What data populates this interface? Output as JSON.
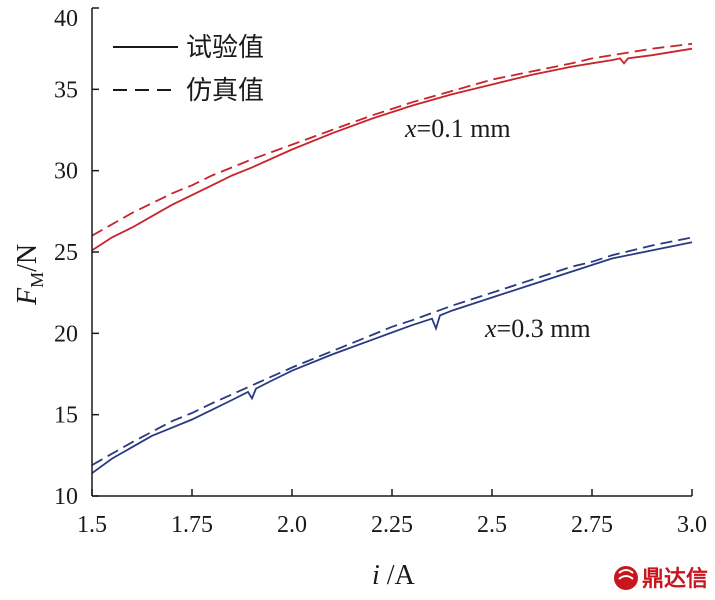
{
  "chart_data": {
    "type": "line",
    "xlabel": {
      "var": "i",
      "unit": " /A"
    },
    "ylabel": {
      "var": "F",
      "sub": "M",
      "unit": "/N"
    },
    "xlim": [
      1.5,
      3.0
    ],
    "ylim": [
      10,
      40
    ],
    "xticks": [
      "1.5",
      "1.75",
      "2.0",
      "2.25",
      "2.5",
      "2.75",
      "3.0"
    ],
    "yticks": [
      "10",
      "15",
      "20",
      "25",
      "30",
      "35",
      "40"
    ],
    "grid": false,
    "legend": {
      "position": "top-left",
      "entries": [
        {
          "label": "试验值",
          "style": "solid"
        },
        {
          "label": "仿真值",
          "style": "dashed"
        }
      ]
    },
    "annotations": [
      {
        "var": "x",
        "text": "=0.1 mm",
        "x": 2.28,
        "y": 33.4
      },
      {
        "var": "x",
        "text": "=0.3 mm",
        "x": 2.47,
        "y": 19.8
      }
    ],
    "series": [
      {
        "group": "0.1",
        "style": "solid",
        "color": "#c8242b",
        "x": [
          1.5,
          1.55,
          1.6,
          1.65,
          1.7,
          1.75,
          1.8,
          1.85,
          1.9,
          2.0,
          2.1,
          2.2,
          2.25,
          2.3,
          2.4,
          2.5,
          2.6,
          2.7,
          2.75,
          2.8,
          2.82,
          2.83,
          2.84,
          2.9,
          3.0
        ],
        "y": [
          25.1,
          25.9,
          26.5,
          27.2,
          27.9,
          28.5,
          29.1,
          29.7,
          30.2,
          31.3,
          32.3,
          33.2,
          33.6,
          34.0,
          34.7,
          35.3,
          35.9,
          36.4,
          36.6,
          36.8,
          36.9,
          36.6,
          36.9,
          37.1,
          37.5
        ]
      },
      {
        "group": "0.1",
        "style": "dashed",
        "color": "#c8242b",
        "x": [
          1.5,
          1.6,
          1.7,
          1.75,
          1.8,
          1.9,
          2.0,
          2.1,
          2.2,
          2.25,
          2.3,
          2.4,
          2.5,
          2.6,
          2.7,
          2.75,
          2.8,
          2.9,
          3.0
        ],
        "y": [
          26.0,
          27.4,
          28.6,
          29.1,
          29.7,
          30.7,
          31.6,
          32.5,
          33.4,
          33.8,
          34.2,
          34.9,
          35.6,
          36.1,
          36.6,
          36.9,
          37.1,
          37.5,
          37.8
        ]
      },
      {
        "group": "0.3",
        "style": "solid",
        "color": "#2a3a80",
        "x": [
          1.5,
          1.55,
          1.6,
          1.65,
          1.7,
          1.75,
          1.8,
          1.85,
          1.89,
          1.9,
          1.91,
          1.95,
          2.0,
          2.1,
          2.2,
          2.3,
          2.35,
          2.36,
          2.37,
          2.4,
          2.5,
          2.6,
          2.7,
          2.75,
          2.8,
          2.9,
          3.0
        ],
        "y": [
          11.4,
          12.3,
          13.0,
          13.7,
          14.2,
          14.7,
          15.3,
          15.9,
          16.4,
          16.0,
          16.6,
          17.1,
          17.7,
          18.7,
          19.6,
          20.5,
          20.9,
          20.3,
          21.1,
          21.4,
          22.2,
          23.0,
          23.8,
          24.2,
          24.6,
          25.1,
          25.6
        ]
      },
      {
        "group": "0.3",
        "style": "dashed",
        "color": "#2a3a80",
        "x": [
          1.5,
          1.6,
          1.7,
          1.75,
          1.8,
          1.9,
          2.0,
          2.1,
          2.2,
          2.25,
          2.3,
          2.4,
          2.5,
          2.6,
          2.7,
          2.75,
          2.8,
          2.9,
          3.0
        ],
        "y": [
          11.9,
          13.3,
          14.6,
          15.1,
          15.7,
          16.8,
          17.9,
          18.9,
          19.9,
          20.4,
          20.8,
          21.7,
          22.5,
          23.3,
          24.1,
          24.4,
          24.8,
          25.4,
          25.9
        ]
      }
    ]
  },
  "watermark": {
    "text": "鼎达信",
    "icon": "logo-icon"
  }
}
